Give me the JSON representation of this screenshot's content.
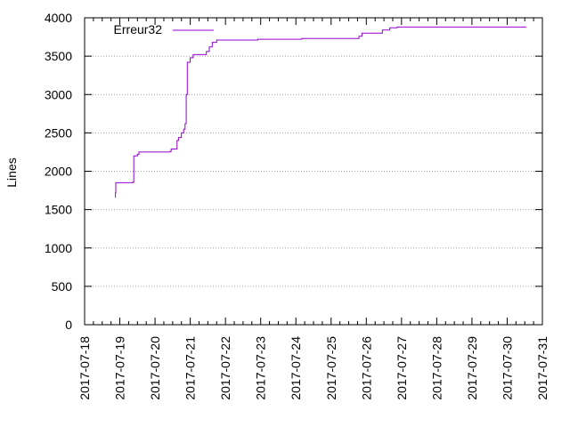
{
  "chart_data": {
    "type": "line",
    "ylabel": "Lines",
    "xlabel": "",
    "ylim": [
      0,
      4000
    ],
    "yticks": [
      0,
      500,
      1000,
      1500,
      2000,
      2500,
      3000,
      3500,
      4000
    ],
    "xlim": [
      "2017-07-18",
      "2017-07-31"
    ],
    "xticks": [
      "2017-07-18",
      "2017-07-19",
      "2017-07-20",
      "2017-07-21",
      "2017-07-22",
      "2017-07-23",
      "2017-07-24",
      "2017-07-25",
      "2017-07-26",
      "2017-07-27",
      "2017-07-28",
      "2017-07-29",
      "2017-07-30",
      "2017-07-31"
    ],
    "grid": true,
    "legend_position": "top-left",
    "series": [
      {
        "name": "Erreur32",
        "color": "#9400d3",
        "step": true,
        "points": [
          [
            "2017-07-18T20:45",
            1660
          ],
          [
            "2017-07-18T21:00",
            1720
          ],
          [
            "2017-07-18T21:15",
            1850
          ],
          [
            "2017-07-19T09:00",
            1860
          ],
          [
            "2017-07-19T09:30",
            2200
          ],
          [
            "2017-07-19T12:00",
            2220
          ],
          [
            "2017-07-19T13:00",
            2250
          ],
          [
            "2017-07-20T10:15",
            2260
          ],
          [
            "2017-07-20T11:00",
            2290
          ],
          [
            "2017-07-20T15:00",
            2400
          ],
          [
            "2017-07-20T16:00",
            2440
          ],
          [
            "2017-07-20T18:00",
            2500
          ],
          [
            "2017-07-20T19:30",
            2550
          ],
          [
            "2017-07-20T20:30",
            2620
          ],
          [
            "2017-07-20T21:15",
            3000
          ],
          [
            "2017-07-20T22:00",
            3420
          ],
          [
            "2017-07-21T00:00",
            3480
          ],
          [
            "2017-07-21T02:00",
            3520
          ],
          [
            "2017-07-21T11:00",
            3560
          ],
          [
            "2017-07-21T13:00",
            3620
          ],
          [
            "2017-07-21T15:00",
            3680
          ],
          [
            "2017-07-21T18:00",
            3710
          ],
          [
            "2017-07-22T22:00",
            3720
          ],
          [
            "2017-07-24T04:00",
            3730
          ],
          [
            "2017-07-25T19:00",
            3760
          ],
          [
            "2017-07-25T21:00",
            3800
          ],
          [
            "2017-07-26T11:00",
            3840
          ],
          [
            "2017-07-26T16:00",
            3870
          ],
          [
            "2017-07-26T21:00",
            3880
          ],
          [
            "2017-07-30T13:00",
            3880
          ]
        ]
      }
    ]
  }
}
